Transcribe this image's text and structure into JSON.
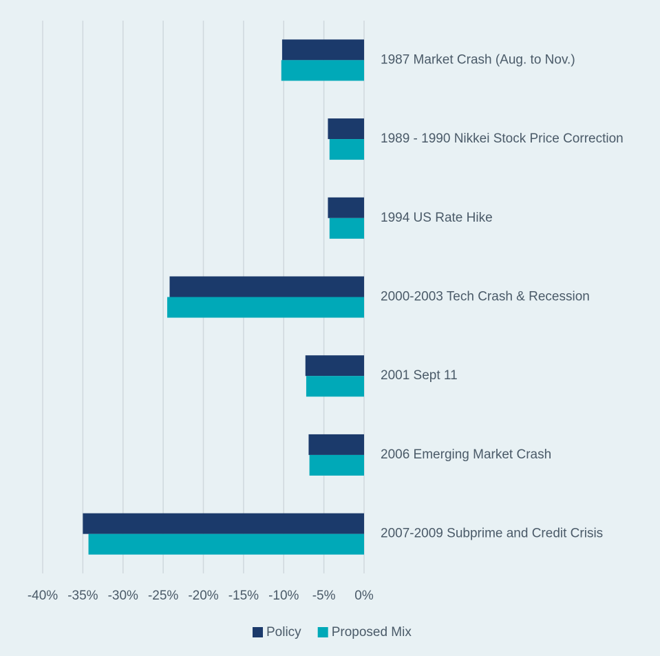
{
  "chart_data": {
    "type": "barh",
    "categories": [
      "1987 Market Crash (Aug. to Nov.)",
      "1989 - 1990 Nikkei Stock Price Correction",
      "1994 US Rate Hike",
      "2000-2003 Tech Crash & Recession",
      "2001 Sept 11",
      "2006 Emerging Market Crash",
      "2007-2009 Subprime and Credit Crisis"
    ],
    "series": [
      {
        "name": "Policy",
        "color": "#1b3a6b",
        "values": [
          -10.2,
          -4.5,
          -4.5,
          -24.2,
          -7.3,
          -6.9,
          -35.0
        ]
      },
      {
        "name": "Proposed Mix",
        "color": "#00a9b8",
        "values": [
          -10.3,
          -4.3,
          -4.3,
          -24.5,
          -7.2,
          -6.8,
          -34.3
        ]
      }
    ],
    "xlim": [
      -40,
      0
    ],
    "xticks": [
      {
        "value": -40,
        "label": "-40%"
      },
      {
        "value": -35,
        "label": "-35%"
      },
      {
        "value": -30,
        "label": "-30%"
      },
      {
        "value": -25,
        "label": "-25%"
      },
      {
        "value": -20,
        "label": "-20%"
      },
      {
        "value": -15,
        "label": "-15%"
      },
      {
        "value": -10,
        "label": "-10%"
      },
      {
        "value": -5,
        "label": "-5%"
      },
      {
        "value": 0,
        "label": "0%"
      }
    ],
    "grid": true,
    "legend": "bottom"
  }
}
